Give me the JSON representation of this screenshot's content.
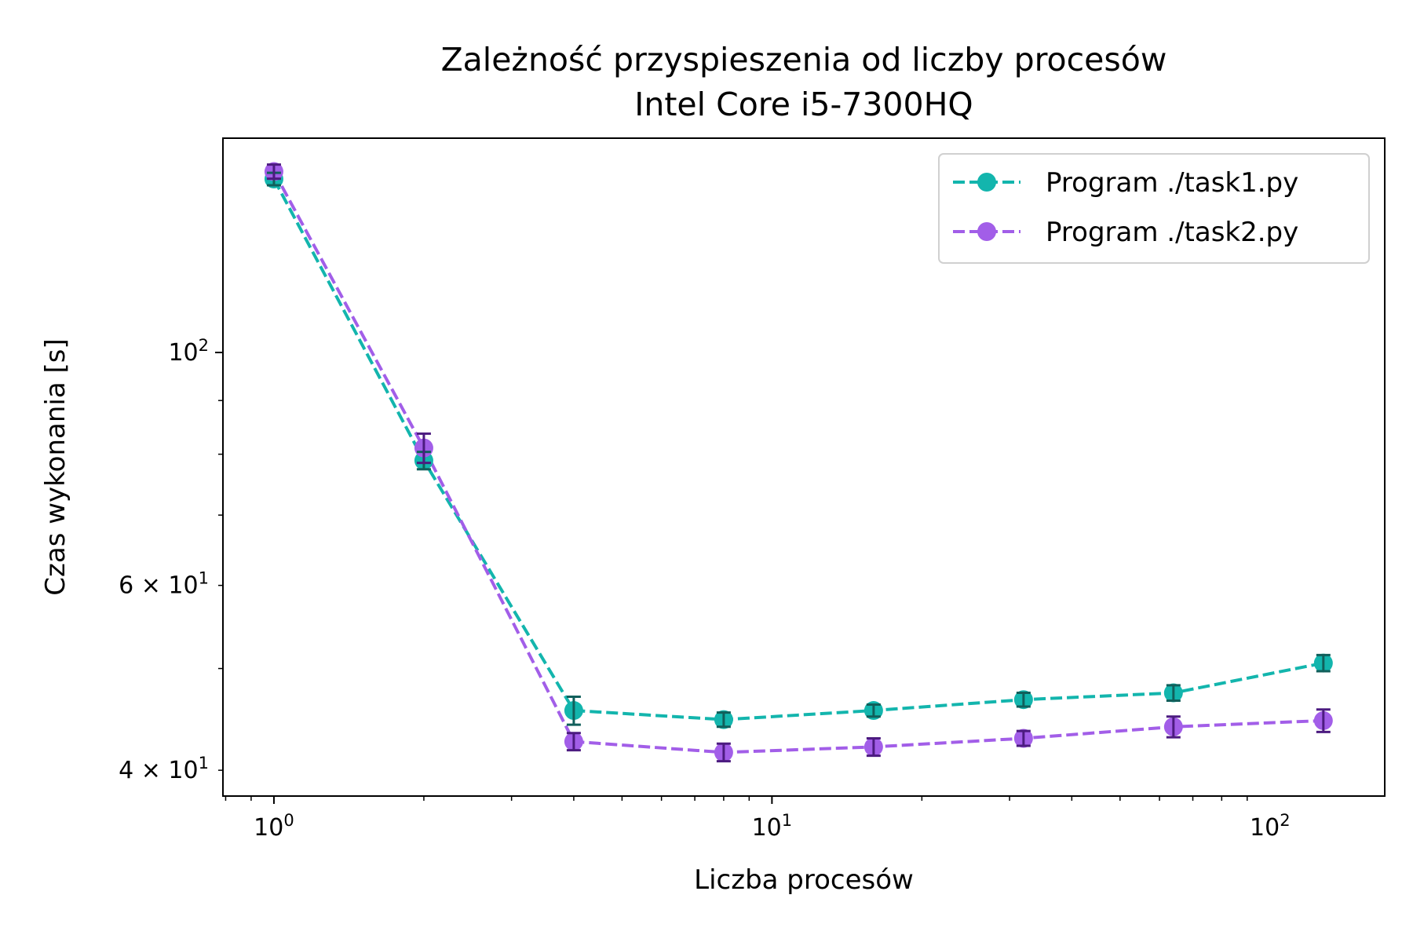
{
  "colors": {
    "task1": "#13b5ad",
    "task2": "#a25ee8",
    "task1_errorbar": "#115f5b",
    "task2_errorbar": "#4c1b80"
  },
  "chart_data": {
    "type": "line",
    "title": "Zależność przyspieszenia od liczby procesów",
    "subtitle": "Intel Core i5-7300HQ",
    "xlabel": "Liczba procesów",
    "ylabel": "Czas wykonania [s]",
    "xscale": "log",
    "yscale": "log",
    "xlim": [
      0.79,
      170
    ],
    "ylim": [
      37.8,
      160
    ],
    "x": [
      1,
      2,
      4,
      8,
      16,
      32,
      64,
      128
    ],
    "x_tick_labels": [
      {
        "value": 1,
        "base": "10",
        "exp": "0"
      },
      {
        "value": 10,
        "base": "10",
        "exp": "1"
      },
      {
        "value": 100,
        "base": "10",
        "exp": "2"
      }
    ],
    "y_tick_labels": [
      {
        "value": 40,
        "base": "4 × 10",
        "exp": "1"
      },
      {
        "value": 60,
        "base": "6 × 10",
        "exp": "1"
      },
      {
        "value": 100,
        "base": "10",
        "exp": "2"
      }
    ],
    "grid": false,
    "legend_position": "top-right",
    "series": [
      {
        "name": "Program ./task1.py",
        "values": [
          146.3,
          78.9,
          45.6,
          44.7,
          45.6,
          46.7,
          47.4,
          50.6
        ],
        "errors": [
          2.0,
          1.5,
          1.4,
          0.7,
          0.6,
          0.7,
          0.8,
          0.9
        ]
      },
      {
        "name": "Program ./task2.py",
        "values": [
          148.7,
          81.1,
          42.6,
          41.6,
          42.1,
          42.9,
          44.0,
          44.6
        ],
        "errors": [
          2.3,
          2.6,
          0.8,
          0.8,
          0.8,
          0.7,
          1.0,
          1.1
        ]
      }
    ]
  }
}
